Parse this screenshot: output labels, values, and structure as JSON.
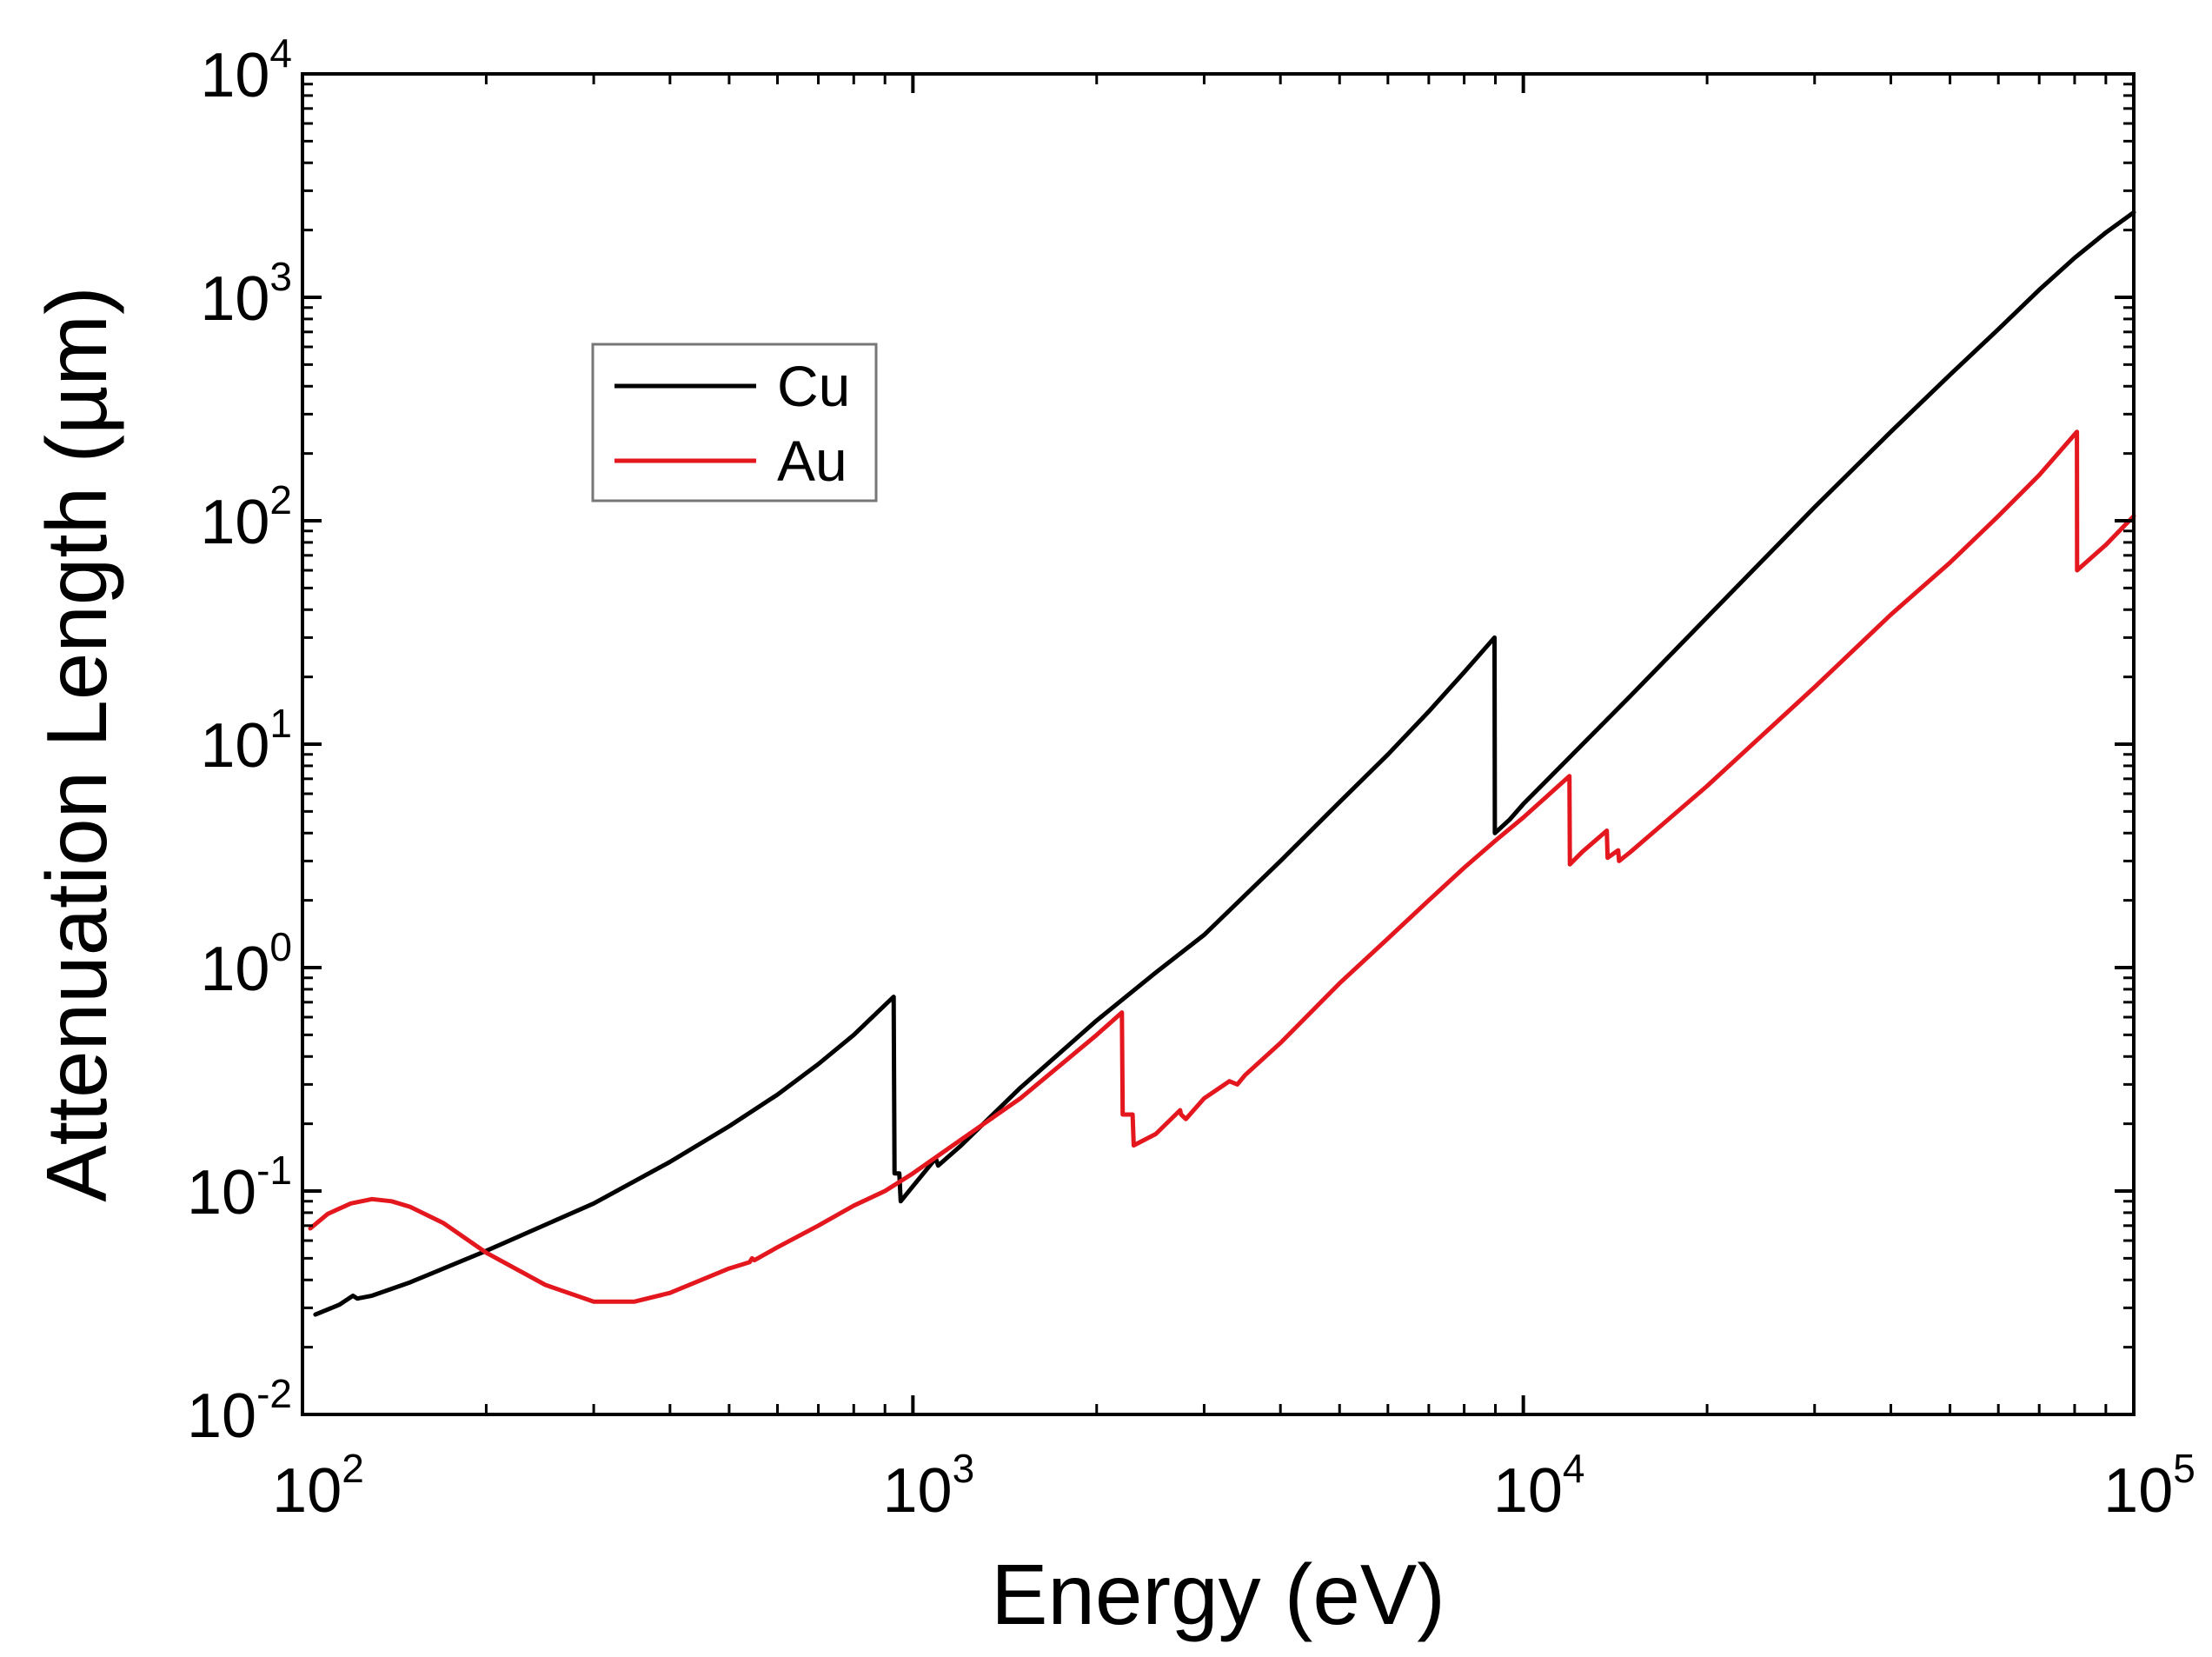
{
  "chart_data": {
    "type": "line",
    "title": "",
    "xlabel": "Energy (eV)",
    "ylabel": "Attenuation Length (µm)",
    "xscale": "log",
    "yscale": "log",
    "xlim": [
      100,
      100000
    ],
    "ylim": [
      0.01,
      10000
    ],
    "grid": false,
    "legend": {
      "placement": "upper-left"
    },
    "x_ticks": [
      {
        "base": "10",
        "exp": "2",
        "value": 100
      },
      {
        "base": "10",
        "exp": "3",
        "value": 1000
      },
      {
        "base": "10",
        "exp": "4",
        "value": 10000
      },
      {
        "base": "10",
        "exp": "5",
        "value": 100000
      }
    ],
    "y_ticks": [
      {
        "base": "10",
        "exp": "-2",
        "value": 0.01
      },
      {
        "base": "10",
        "exp": "-1",
        "value": 0.1
      },
      {
        "base": "10",
        "exp": "0",
        "value": 1
      },
      {
        "base": "10",
        "exp": "1",
        "value": 10
      },
      {
        "base": "10",
        "exp": "2",
        "value": 100
      },
      {
        "base": "10",
        "exp": "3",
        "value": 1000
      },
      {
        "base": "10",
        "exp": "4",
        "value": 10000
      }
    ],
    "series": [
      {
        "name": "Cu",
        "color": "#000000",
        "points": [
          [
            105,
            0.028
          ],
          [
            115,
            0.031
          ],
          [
            121,
            0.034
          ],
          [
            123,
            0.033
          ],
          [
            130,
            0.034
          ],
          [
            150,
            0.039
          ],
          [
            200,
            0.054
          ],
          [
            300,
            0.088
          ],
          [
            400,
            0.135
          ],
          [
            500,
            0.195
          ],
          [
            600,
            0.27
          ],
          [
            700,
            0.37
          ],
          [
            800,
            0.5
          ],
          [
            900,
            0.68
          ],
          [
            930,
            0.74
          ],
          [
            933,
            0.12
          ],
          [
            950,
            0.12
          ],
          [
            955,
            0.09
          ],
          [
            1000,
            0.105
          ],
          [
            1090,
            0.14
          ],
          [
            1100,
            0.13
          ],
          [
            1200,
            0.16
          ],
          [
            1500,
            0.29
          ],
          [
            2000,
            0.58
          ],
          [
            2500,
            0.95
          ],
          [
            3000,
            1.4
          ],
          [
            4000,
            3.0
          ],
          [
            5000,
            5.5
          ],
          [
            6000,
            9.0
          ],
          [
            7000,
            14.0
          ],
          [
            8000,
            21.0
          ],
          [
            8970,
            30.0
          ],
          [
            8980,
            4.0
          ],
          [
            9500,
            4.6
          ],
          [
            10000,
            5.4
          ],
          [
            15000,
            16.5
          ],
          [
            20000,
            37.0
          ],
          [
            30000,
            115.0
          ],
          [
            40000,
            250.0
          ],
          [
            50000,
            450.0
          ],
          [
            60000,
            720.0
          ],
          [
            70000,
            1080.0
          ],
          [
            80000,
            1500.0
          ],
          [
            90000,
            1950.0
          ],
          [
            100000,
            2400.0
          ]
        ]
      },
      {
        "name": "Au",
        "color": "#e3171d",
        "points": [
          [
            103,
            0.068
          ],
          [
            110,
            0.079
          ],
          [
            120,
            0.088
          ],
          [
            130,
            0.092
          ],
          [
            140,
            0.09
          ],
          [
            150,
            0.085
          ],
          [
            170,
            0.072
          ],
          [
            200,
            0.053
          ],
          [
            250,
            0.038
          ],
          [
            300,
            0.032
          ],
          [
            350,
            0.032
          ],
          [
            400,
            0.035
          ],
          [
            450,
            0.04
          ],
          [
            500,
            0.045
          ],
          [
            540,
            0.048
          ],
          [
            545,
            0.05
          ],
          [
            550,
            0.049
          ],
          [
            600,
            0.056
          ],
          [
            700,
            0.07
          ],
          [
            800,
            0.086
          ],
          [
            900,
            0.1
          ],
          [
            1000,
            0.12
          ],
          [
            1200,
            0.17
          ],
          [
            1500,
            0.26
          ],
          [
            2000,
            0.5
          ],
          [
            2200,
            0.63
          ],
          [
            2206,
            0.22
          ],
          [
            2240,
            0.22
          ],
          [
            2290,
            0.22
          ],
          [
            2300,
            0.16
          ],
          [
            2500,
            0.18
          ],
          [
            2740,
            0.23
          ],
          [
            2750,
            0.22
          ],
          [
            2800,
            0.21
          ],
          [
            3000,
            0.26
          ],
          [
            3300,
            0.31
          ],
          [
            3400,
            0.3
          ],
          [
            3500,
            0.33
          ],
          [
            4000,
            0.46
          ],
          [
            5000,
            0.85
          ],
          [
            6000,
            1.35
          ],
          [
            7000,
            2.0
          ],
          [
            8000,
            2.8
          ],
          [
            9000,
            3.7
          ],
          [
            10000,
            4.7
          ],
          [
            11900,
            7.2
          ],
          [
            11920,
            2.9
          ],
          [
            12500,
            3.3
          ],
          [
            13700,
            4.1
          ],
          [
            13740,
            3.1
          ],
          [
            14300,
            3.35
          ],
          [
            14350,
            3.0
          ],
          [
            15000,
            3.3
          ],
          [
            20000,
            6.5
          ],
          [
            30000,
            18.0
          ],
          [
            40000,
            38.0
          ],
          [
            50000,
            65.0
          ],
          [
            60000,
            105.0
          ],
          [
            70000,
            160.0
          ],
          [
            80700,
            250.0
          ],
          [
            80750,
            60.0
          ],
          [
            90000,
            78.0
          ],
          [
            100000,
            105.0
          ]
        ]
      }
    ]
  }
}
